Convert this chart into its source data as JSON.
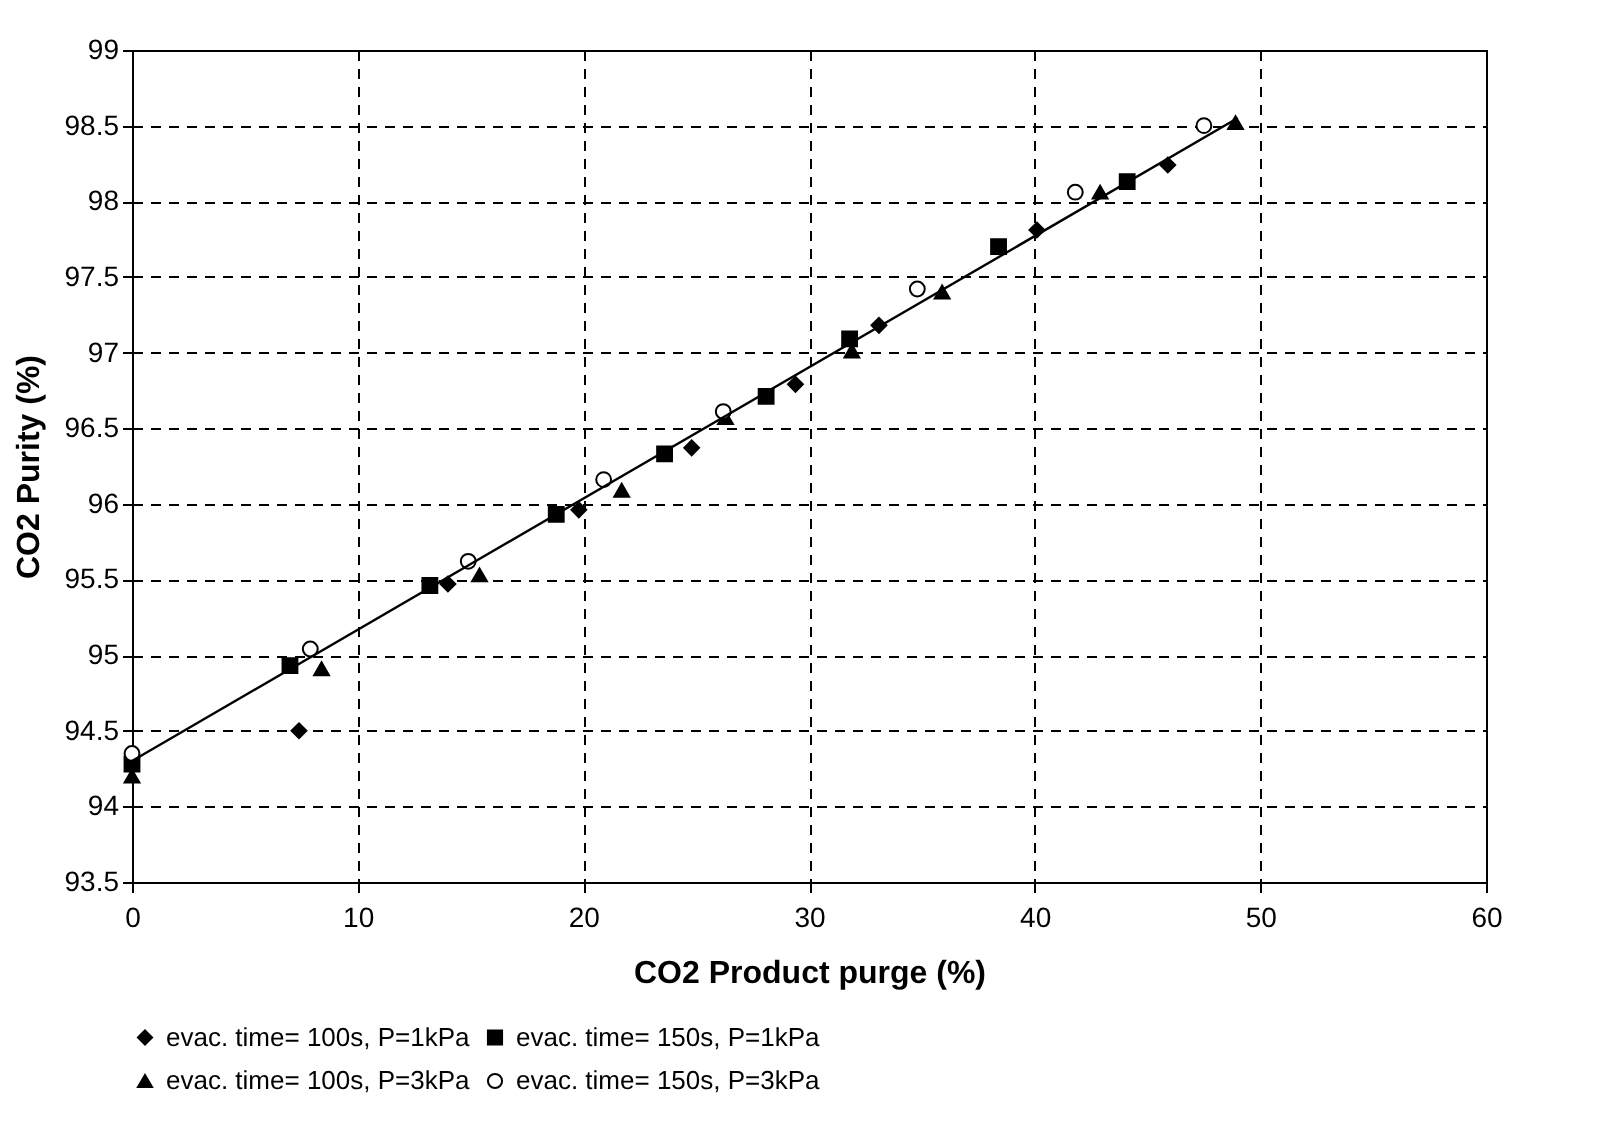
{
  "chart_data": {
    "type": "scatter",
    "xlabel": "CO2 Product purge (%)",
    "ylabel": "CO2 Purity (%)",
    "xlim": [
      0,
      60
    ],
    "ylim": [
      93.5,
      99
    ],
    "xticks": [
      0,
      10,
      20,
      30,
      40,
      50,
      60
    ],
    "yticks": [
      93.5,
      94,
      94.5,
      95,
      95.5,
      96,
      96.5,
      97,
      97.5,
      98,
      98.5,
      99
    ],
    "grid": true,
    "legend": "bottom",
    "series": [
      {
        "name": "evac. time= 100s, P=1kPa",
        "color": "#000000",
        "marker": "diamond",
        "x": [
          7.4,
          14.0,
          19.8,
          24.8,
          29.4,
          33.1,
          40.1,
          45.9
        ],
        "values": [
          94.5,
          95.47,
          95.96,
          96.37,
          96.79,
          97.18,
          97.81,
          98.24
        ]
      },
      {
        "name": "evac. time= 150s, P=1kPa",
        "color": "#000000",
        "marker": "square",
        "x": [
          0,
          7.0,
          13.2,
          18.8,
          23.6,
          28.1,
          31.8,
          38.4,
          44.1
        ],
        "values": [
          94.28,
          94.93,
          95.46,
          95.93,
          96.33,
          96.71,
          97.09,
          97.7,
          98.13
        ]
      },
      {
        "name": "evac. time= 100s, P=3kPa",
        "color": "#000000",
        "marker": "triangle",
        "x": [
          0,
          8.4,
          15.4,
          21.7,
          26.3,
          31.9,
          35.9,
          42.9,
          48.9
        ],
        "values": [
          94.2,
          94.91,
          95.53,
          96.09,
          96.57,
          97.01,
          97.4,
          98.06,
          98.52
        ]
      },
      {
        "name": "evac. time= 150s, P=3kPa",
        "color": "#000000",
        "marker": "circle",
        "x": [
          0,
          7.9,
          14.9,
          20.9,
          26.2,
          34.8,
          41.8,
          47.5
        ],
        "values": [
          94.35,
          95.04,
          95.62,
          96.16,
          96.61,
          97.42,
          98.06,
          98.5
        ]
      },
      {
        "type": "line",
        "color": "#000000",
        "marker": "none",
        "x": [
          0,
          49
        ],
        "values": [
          94.3,
          98.55
        ]
      }
    ]
  }
}
